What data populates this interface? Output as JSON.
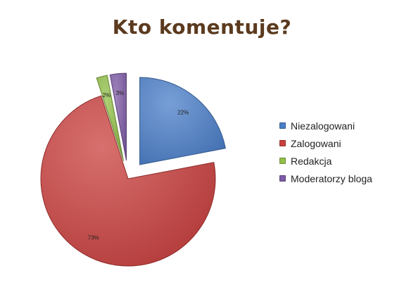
{
  "chart_data": {
    "type": "pie",
    "title": "Kto komentuje?",
    "title_color": "#5b3a1e",
    "legend_position": "right",
    "slices": [
      {
        "label": "Niezalogowani",
        "value": 22,
        "value_label": "22%",
        "color": "#4a7ec8",
        "exploded": true
      },
      {
        "label": "Zalogowani",
        "value": 73,
        "value_label": "73%",
        "color": "#c9403e",
        "exploded": false
      },
      {
        "label": "Redakcja",
        "value": 2,
        "value_label": "2%",
        "color": "#92c048",
        "exploded": true
      },
      {
        "label": "Moderatorzy bloga",
        "value": 3,
        "value_label": "3%",
        "color": "#7d5ba6",
        "exploded": true
      }
    ]
  }
}
